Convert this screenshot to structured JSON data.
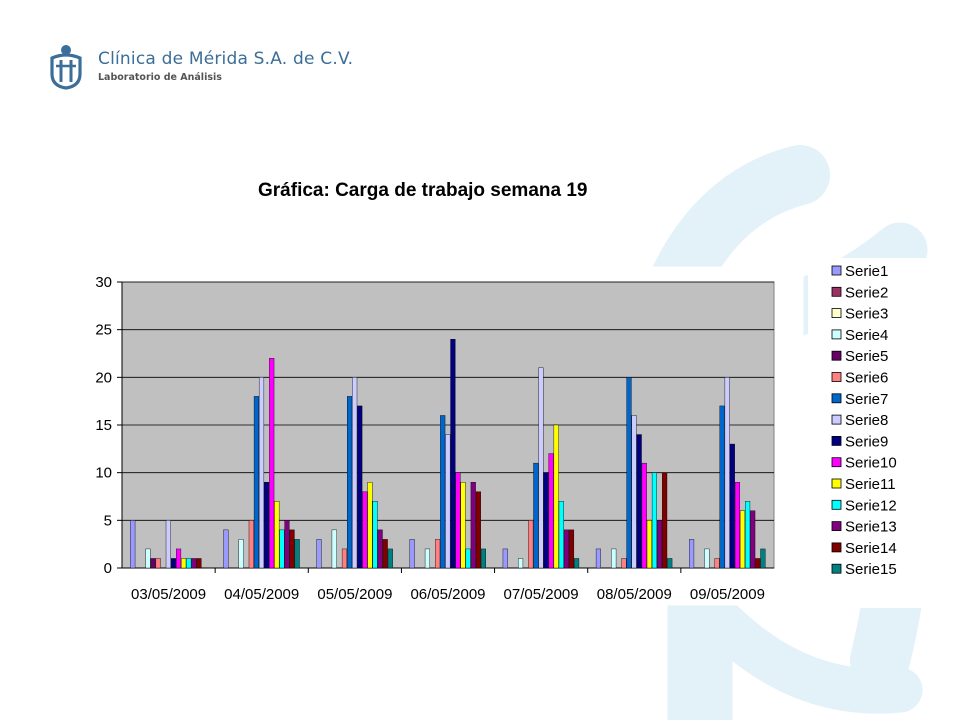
{
  "header": {
    "company": "Clínica de Mérida S.A. de C.V.",
    "subtitle": "Laboratorio de Análisis"
  },
  "slide": {
    "title": "Gráfica: Carga de trabajo semana 19"
  },
  "colors": {
    "brand": "#3b6e98",
    "watermark": "#e3f1f9",
    "plot_background": "#c0c0c0"
  },
  "chart_data": {
    "type": "bar",
    "title": "",
    "xlabel": "",
    "ylabel": "",
    "ylim": [
      0,
      30
    ],
    "yticks": [
      "0",
      "5",
      "10",
      "15",
      "20",
      "25",
      "30"
    ],
    "grid": true,
    "legend_position": "right",
    "categories": [
      "03/05/2009",
      "04/05/2009",
      "05/05/2009",
      "06/05/2009",
      "07/05/2009",
      "08/05/2009",
      "09/05/2009"
    ],
    "series": [
      {
        "name": "Serie1",
        "color": "#9999ff",
        "values": [
          5,
          4,
          3,
          3,
          2,
          2,
          3
        ]
      },
      {
        "name": "Serie2",
        "color": "#993366",
        "values": [
          0,
          0,
          0,
          0,
          0,
          0,
          0
        ]
      },
      {
        "name": "Serie3",
        "color": "#ffffcc",
        "values": [
          0,
          0,
          0,
          0,
          0,
          0,
          0
        ]
      },
      {
        "name": "Serie4",
        "color": "#ccffff",
        "values": [
          2,
          3,
          4,
          2,
          1,
          2,
          2
        ]
      },
      {
        "name": "Serie5",
        "color": "#660066",
        "values": [
          1,
          0,
          0,
          0,
          0,
          0,
          0
        ]
      },
      {
        "name": "Serie6",
        "color": "#ff8080",
        "values": [
          1,
          5,
          2,
          3,
          5,
          1,
          1
        ]
      },
      {
        "name": "Serie7",
        "color": "#0066cc",
        "values": [
          0,
          18,
          18,
          16,
          11,
          20,
          17
        ]
      },
      {
        "name": "Serie8",
        "color": "#ccccff",
        "values": [
          5,
          20,
          20,
          14,
          21,
          16,
          20
        ]
      },
      {
        "name": "Serie9",
        "color": "#000080",
        "values": [
          1,
          9,
          17,
          24,
          10,
          14,
          13
        ]
      },
      {
        "name": "Serie10",
        "color": "#ff00ff",
        "values": [
          2,
          22,
          8,
          10,
          12,
          11,
          9
        ]
      },
      {
        "name": "Serie11",
        "color": "#ffff00",
        "values": [
          1,
          7,
          9,
          9,
          15,
          5,
          6
        ]
      },
      {
        "name": "Serie12",
        "color": "#00ffff",
        "values": [
          1,
          4,
          7,
          2,
          7,
          10,
          7
        ]
      },
      {
        "name": "Serie13",
        "color": "#800080",
        "values": [
          1,
          5,
          4,
          9,
          4,
          5,
          6
        ]
      },
      {
        "name": "Serie14",
        "color": "#800000",
        "values": [
          1,
          4,
          3,
          8,
          4,
          10,
          1
        ]
      },
      {
        "name": "Serie15",
        "color": "#008080",
        "values": [
          0,
          3,
          2,
          2,
          1,
          1,
          2
        ]
      }
    ]
  }
}
